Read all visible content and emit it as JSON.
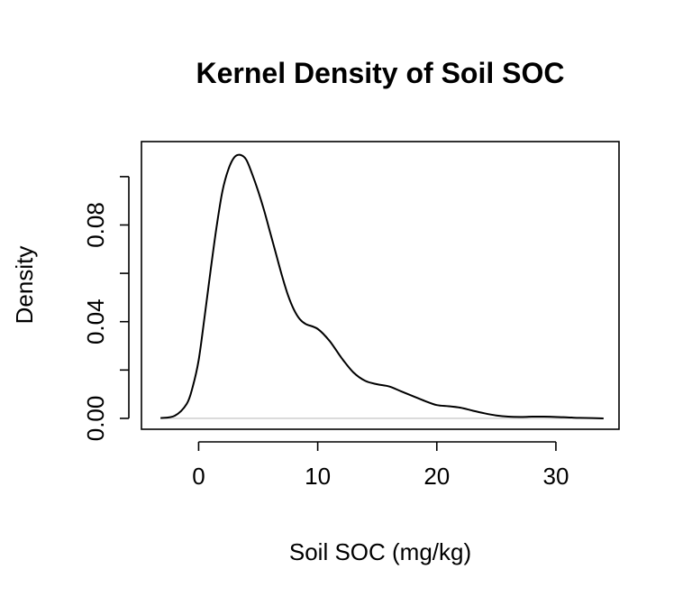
{
  "chart_data": {
    "type": "line",
    "title": "Kernel Density of Soil SOC",
    "xlabel": "Soil SOC (mg/kg)",
    "ylabel": "Density",
    "xlim": [
      -4.8,
      35.3
    ],
    "ylim": [
      -0.0045,
      0.1145
    ],
    "x_ticks": [
      0,
      10,
      20,
      30
    ],
    "x_tick_labels": [
      "0",
      "10",
      "20",
      "30"
    ],
    "y_ticks": [
      0.0,
      0.02,
      0.04,
      0.06,
      0.08,
      0.1
    ],
    "y_tick_labels": [
      "0.00",
      "",
      "0.04",
      "",
      "0.08",
      ""
    ],
    "zero_reference_line": true,
    "grid": false,
    "series": [
      {
        "x": [
          -3.2,
          -2.0,
          -1.0,
          -0.5,
          0.0,
          0.5,
          1.0,
          1.5,
          2.0,
          2.5,
          3.0,
          3.5,
          4.0,
          4.5,
          5.0,
          5.5,
          6.0,
          6.5,
          7.0,
          7.5,
          8.0,
          8.5,
          9.0,
          10.0,
          11.0,
          12.0,
          13.0,
          14.0,
          15.0,
          16.0,
          17.0,
          18.0,
          19.0,
          20.0,
          21.0,
          22.0,
          23.0,
          24.0,
          25.0,
          26.0,
          27.0,
          28.0,
          29.0,
          30.0,
          31.0,
          32.0,
          33.0,
          34.0
        ],
        "y": [
          0.0001,
          0.0011,
          0.006,
          0.013,
          0.024,
          0.042,
          0.061,
          0.079,
          0.094,
          0.103,
          0.108,
          0.109,
          0.107,
          0.101,
          0.094,
          0.086,
          0.077,
          0.068,
          0.059,
          0.051,
          0.045,
          0.041,
          0.039,
          0.037,
          0.032,
          0.025,
          0.019,
          0.0155,
          0.0141,
          0.0132,
          0.0112,
          0.0092,
          0.0072,
          0.0055,
          0.005,
          0.0044,
          0.0032,
          0.0021,
          0.0012,
          0.0007,
          0.0006,
          0.0007,
          0.0007,
          0.0006,
          0.0004,
          0.0002,
          0.0001,
          0.0
        ]
      }
    ]
  }
}
